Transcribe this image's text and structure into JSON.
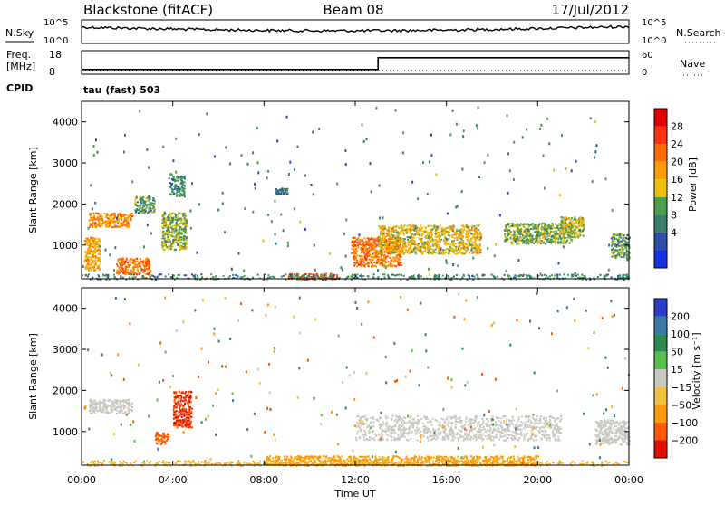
{
  "header": {
    "station": "Blackstone (fitACF)",
    "beam": "Beam 08",
    "date": "17/Jul/2012"
  },
  "noise_panel": {
    "left_label": "N.Sky",
    "right_label": "N.Search",
    "left_ticks": [
      "10^5",
      "10^0"
    ],
    "right_ticks": [
      "10^5",
      "10^0"
    ]
  },
  "freq_panel": {
    "left_label_line1": "Freq.",
    "left_label_line2": "[MHz]",
    "right_label": "Nave",
    "left_ticks": [
      "18",
      "8"
    ],
    "right_ticks": [
      "60",
      "0"
    ]
  },
  "cpid": {
    "label": "CPID",
    "mode": "tau (fast) 503"
  },
  "power_panel": {
    "ylabel": "Slant Range [km]",
    "yticks": [
      "4000",
      "3000",
      "2000",
      "1000"
    ],
    "colorbar_label": "Power [dB]",
    "colorbar_ticks": [
      "28",
      "24",
      "20",
      "16",
      "12",
      "8",
      "4"
    ],
    "colorbar_colors": [
      "#e00000",
      "#ff3010",
      "#ff6a00",
      "#ff9c00",
      "#f0c000",
      "#4d9f50",
      "#3a7d6e",
      "#2d4fa8",
      "#1530e0"
    ]
  },
  "velocity_panel": {
    "ylabel": "Slant Range [km]",
    "yticks": [
      "4000",
      "3000",
      "2000",
      "1000"
    ],
    "colorbar_label": "Velocity [m s⁻¹]",
    "colorbar_ticks": [
      "200",
      "100",
      "50",
      "15",
      "−15",
      "−50",
      "−100",
      "−200"
    ],
    "colorbar_colors": [
      "#2a3cc8",
      "#3a78a8",
      "#2c8a50",
      "#58c04a",
      "#c8c8c0",
      "#f0c040",
      "#ff9a00",
      "#ff5a00",
      "#e01000"
    ]
  },
  "x_axis": {
    "label": "Time UT",
    "ticks": [
      "00:00",
      "04:00",
      "08:00",
      "12:00",
      "16:00",
      "20:00",
      "00:00"
    ]
  },
  "chart_data": {
    "type": "heatmap",
    "title": "Blackstone (fitACF)",
    "subtitle": "Beam 08 — 17/Jul/2012",
    "xlabel": "Time UT",
    "ylabel": "Slant Range [km]",
    "xlim_hours": [
      0,
      24
    ],
    "ylim_km": [
      180,
      4500
    ],
    "frequency_mhz": [
      {
        "start_hour": 0,
        "end_hour": 13,
        "value": 10
      },
      {
        "start_hour": 13,
        "end_hour": 24,
        "value": 15
      }
    ],
    "power_features": [
      {
        "t0": 0.3,
        "t1": 2.2,
        "r0": 1450,
        "r1": 1800,
        "db": 20
      },
      {
        "t0": 2.3,
        "t1": 3.2,
        "r0": 1800,
        "r1": 2200,
        "db": 10
      },
      {
        "t0": 3.5,
        "t1": 4.6,
        "r0": 900,
        "r1": 1800,
        "db": 12
      },
      {
        "t0": 3.8,
        "t1": 4.5,
        "r0": 2200,
        "r1": 2700,
        "db": 8
      },
      {
        "t0": 1.5,
        "t1": 3.0,
        "r0": 300,
        "r1": 700,
        "db": 22
      },
      {
        "t0": 0.1,
        "t1": 0.8,
        "r0": 400,
        "r1": 1200,
        "db": 18
      },
      {
        "t0": 8.5,
        "t1": 9.0,
        "r0": 2250,
        "r1": 2400,
        "db": 6
      },
      {
        "t0": 9.0,
        "t1": 11.3,
        "r0": 180,
        "r1": 320,
        "db": 26
      },
      {
        "t0": 11.8,
        "t1": 14.0,
        "r0": 500,
        "r1": 1200,
        "db": 22
      },
      {
        "t0": 13.0,
        "t1": 17.5,
        "r0": 800,
        "r1": 1500,
        "db": 16
      },
      {
        "t0": 18.5,
        "t1": 21.5,
        "r0": 1050,
        "r1": 1550,
        "db": 12
      },
      {
        "t0": 21.0,
        "t1": 22.0,
        "r0": 1200,
        "r1": 1700,
        "db": 14
      },
      {
        "t0": 23.2,
        "t1": 24.0,
        "r0": 700,
        "r1": 1300,
        "db": 10
      }
    ],
    "velocity_features": [
      {
        "t0": 0.3,
        "t1": 2.2,
        "r0": 1450,
        "r1": 1800,
        "v": 0
      },
      {
        "t0": 4.0,
        "t1": 4.8,
        "r0": 1100,
        "r1": 2000,
        "v": -200
      },
      {
        "t0": 3.2,
        "t1": 3.8,
        "r0": 700,
        "r1": 1000,
        "v": -150
      },
      {
        "t0": 8.0,
        "t1": 20.0,
        "r0": 180,
        "r1": 420,
        "v": -60
      },
      {
        "t0": 12.0,
        "t1": 21.0,
        "r0": 800,
        "r1": 1400,
        "v": 0
      },
      {
        "t0": 22.5,
        "t1": 24.0,
        "r0": 700,
        "r1": 1300,
        "v": 0
      }
    ]
  }
}
